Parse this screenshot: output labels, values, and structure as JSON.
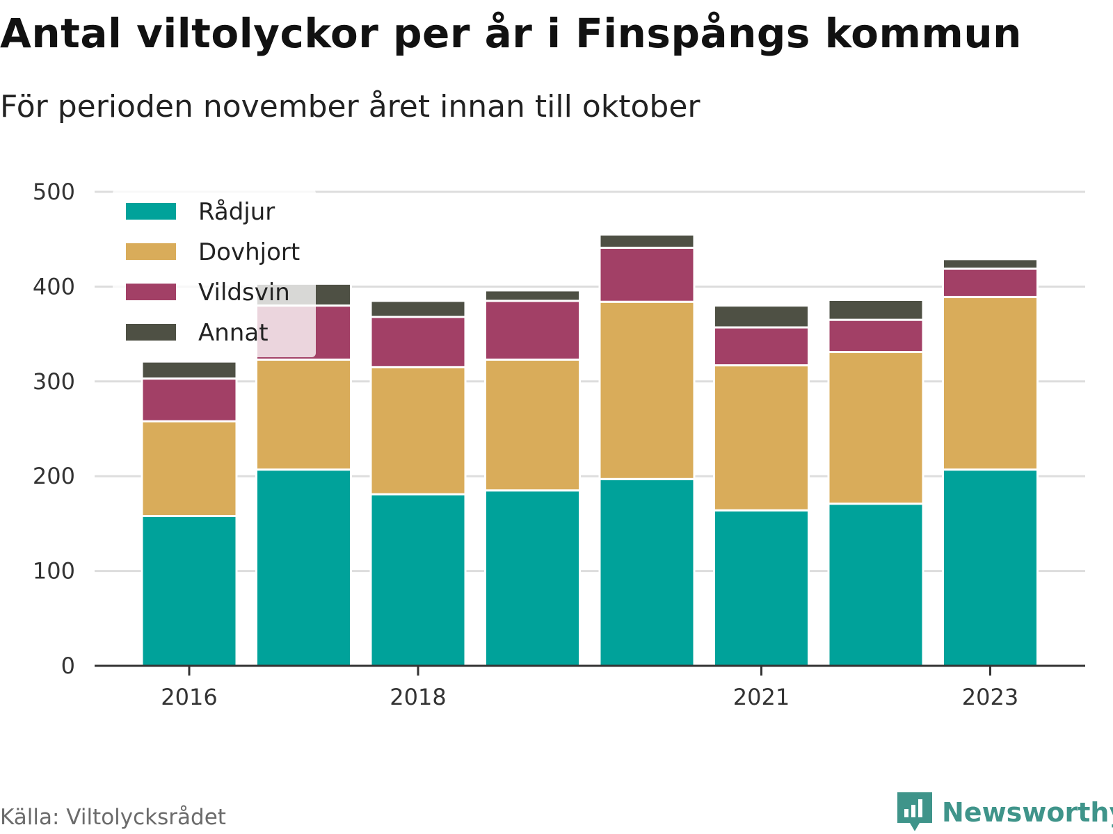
{
  "header": {
    "title": "Antal viltolyckor per år i Finspångs kommun",
    "subtitle": "För perioden november året innan till oktober"
  },
  "footer": {
    "source": "Källa: Viltolycksrådet",
    "brand": "Newsworthy",
    "brand_icon": "bar-chart-icon"
  },
  "chart_data": {
    "type": "bar",
    "stacked": true,
    "categories": [
      "2016",
      "2017",
      "2018",
      "2019",
      "2020",
      "2021",
      "2022",
      "2023"
    ],
    "x_tick_labels": [
      "2016",
      "2018",
      "2021",
      "2023"
    ],
    "y_ticks": [
      0,
      100,
      200,
      300,
      400,
      500
    ],
    "ylim": [
      0,
      500
    ],
    "grid": true,
    "legend_position": "top-left",
    "series": [
      {
        "name": "Rådjur",
        "color": "#00a29a",
        "values": [
          158,
          207,
          181,
          185,
          197,
          164,
          171,
          207
        ]
      },
      {
        "name": "Dovhjort",
        "color": "#d9ac5a",
        "values": [
          100,
          116,
          134,
          138,
          187,
          153,
          160,
          182
        ]
      },
      {
        "name": "Vildsvin",
        "color": "#a24066",
        "values": [
          45,
          57,
          53,
          62,
          57,
          40,
          34,
          30
        ]
      },
      {
        "name": "Annat",
        "color": "#4e5044",
        "values": [
          18,
          23,
          17,
          11,
          14,
          23,
          21,
          10
        ]
      }
    ]
  }
}
